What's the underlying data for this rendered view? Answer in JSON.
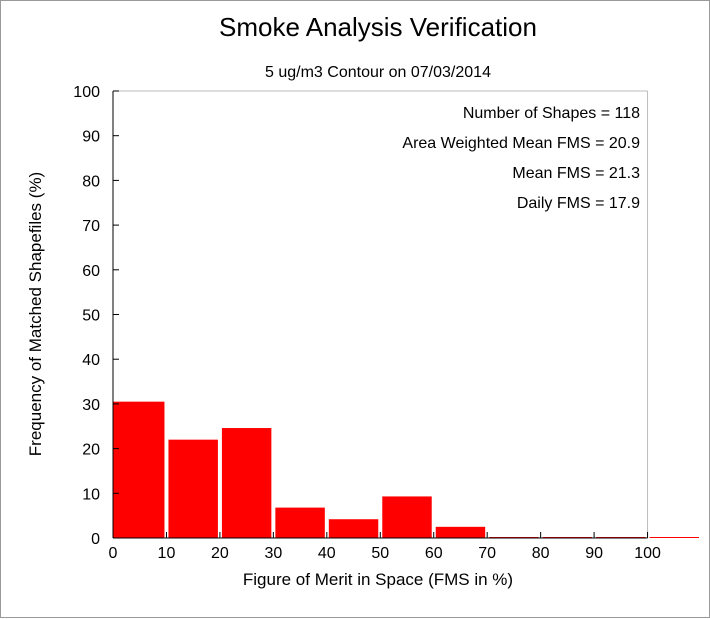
{
  "chart_data": {
    "type": "bar",
    "title": "Smoke Analysis Verification",
    "subtitle": "5 ug/m3 Contour on 07/03/2014",
    "xlabel": "Figure of Merit in Space (FMS in %)",
    "ylabel": "Frequency of Matched Shapefiles (%)",
    "xlim": [
      0,
      110
    ],
    "ylim": [
      0,
      100
    ],
    "x_ticks": [
      0,
      10,
      20,
      30,
      40,
      50,
      60,
      70,
      80,
      90,
      100
    ],
    "y_ticks": [
      0,
      10,
      20,
      30,
      40,
      50,
      60,
      70,
      80,
      90,
      100
    ],
    "bin_width": 10,
    "bins": [
      0,
      10,
      20,
      30,
      40,
      50,
      60,
      70,
      80,
      90,
      100
    ],
    "values": [
      30.5,
      22.0,
      24.6,
      6.8,
      4.2,
      9.3,
      2.5,
      0,
      0,
      0,
      0
    ],
    "bar_color": "#ff0000",
    "grid": false,
    "annotations": [
      "Number of Shapes = 118",
      "Area Weighted Mean FMS = 20.9",
      "Mean FMS = 21.3",
      "Daily FMS = 17.9"
    ]
  }
}
